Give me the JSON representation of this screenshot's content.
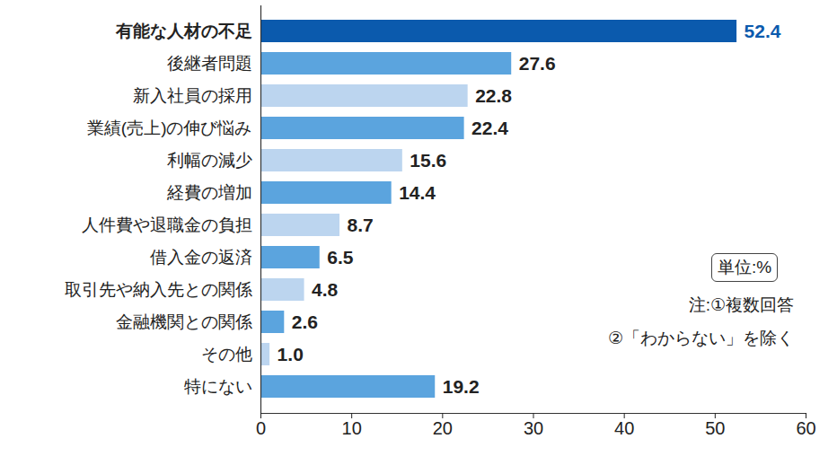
{
  "chart_data": {
    "type": "bar",
    "orientation": "horizontal",
    "categories": [
      "有能な人材の不足",
      "後継者問題",
      "新入社員の採用",
      "業績(売上)の伸び悩み",
      "利幅の減少",
      "経費の増加",
      "人件費や退職金の負担",
      "借入金の返済",
      "取引先や納入先との関係",
      "金融機関との関係",
      "その他",
      "特にない"
    ],
    "values": [
      52.4,
      27.6,
      22.8,
      22.4,
      15.6,
      14.4,
      8.7,
      6.5,
      4.8,
      2.6,
      1.0,
      19.2
    ],
    "value_labels": [
      "52.4",
      "27.6",
      "22.8",
      "22.4",
      "15.6",
      "14.4",
      "8.7",
      "6.5",
      "4.8",
      "2.6",
      "1.0",
      "19.2"
    ],
    "colors": [
      "#0b5aad",
      "#5ba4de",
      "#bcd5ef",
      "#5ba4de",
      "#bcd5ef",
      "#5ba4de",
      "#bcd5ef",
      "#5ba4de",
      "#bcd5ef",
      "#5ba4de",
      "#bcd5ef",
      "#5ba4de"
    ],
    "xlim": [
      0,
      60
    ],
    "xticks": [
      0,
      10,
      20,
      30,
      40,
      50,
      60
    ],
    "grid": false,
    "data_labels": true,
    "annotations": [
      "単位:%",
      "注:①複数回答",
      "②「わからない」を除く"
    ]
  }
}
